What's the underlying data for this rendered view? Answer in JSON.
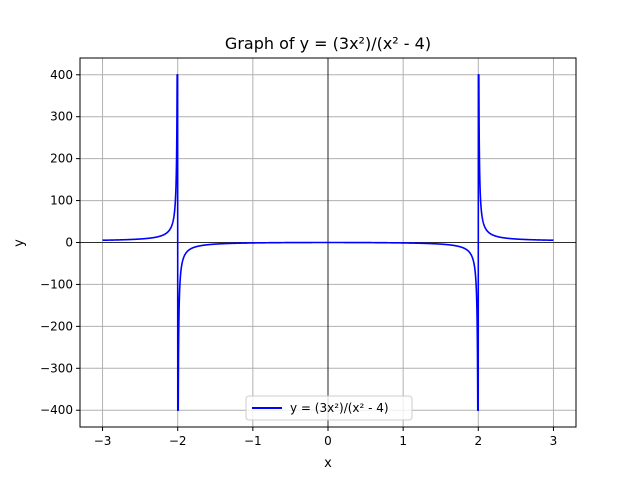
{
  "chart_data": {
    "type": "line",
    "title": "Graph of y = (3x²)/(x² - 4)",
    "xlabel": "x",
    "ylabel": "y",
    "xlim": [
      -3.3,
      3.3
    ],
    "ylim": [
      -440,
      440
    ],
    "xticks": [
      -3,
      -2,
      -1,
      0,
      1,
      2,
      3
    ],
    "yticks": [
      -400,
      -300,
      -200,
      -100,
      0,
      100,
      200,
      300,
      400
    ],
    "xtick_labels": [
      "−3",
      "−2",
      "−1",
      "0",
      "1",
      "2",
      "3"
    ],
    "ytick_labels": [
      "−400",
      "−300",
      "−200",
      "−100",
      "0",
      "100",
      "200",
      "300",
      "400"
    ],
    "grid": true,
    "legend": "lower center",
    "series": [
      {
        "name": "y = (3x²)/(x² - 4)",
        "color": "#0000ff",
        "formula": "3*x*x/(x*x-4)",
        "x_range": [
          -3,
          3
        ],
        "y_clip": [
          -400,
          400
        ]
      }
    ]
  }
}
